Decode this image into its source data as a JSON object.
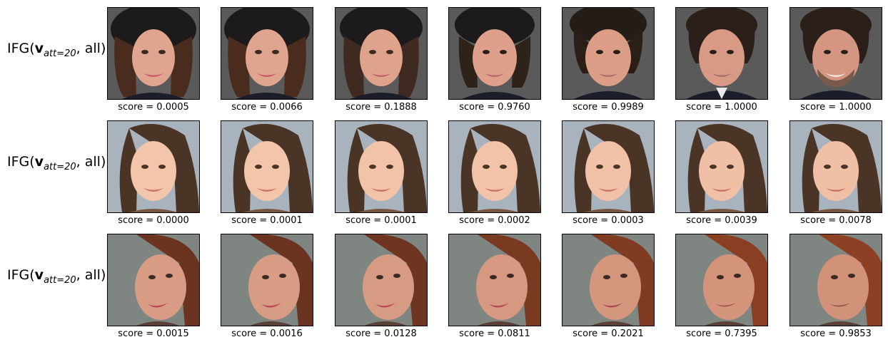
{
  "rows": [
    {
      "label_prefix": "IFG(",
      "label_vector": "v",
      "label_subscript": "att=20",
      "label_suffix": ", all)",
      "scores": [
        "score = 0.0005",
        "score = 0.0066",
        "score = 0.1888",
        "score = 0.9760",
        "score = 0.9989",
        "score = 1.0000",
        "score = 1.0000"
      ],
      "colors": {
        "background": "#5a5a5a",
        "skin": "#e0a58e",
        "hair": "#3a2a22",
        "hat": "#1c1a1a",
        "clothing": "#1a1d2a",
        "lips": "#c95a6a"
      }
    },
    {
      "label_prefix": "IFG(",
      "label_vector": "v",
      "label_subscript": "att=20",
      "label_suffix": ", all)",
      "scores": [
        "score = 0.0000",
        "score = 0.0001",
        "score = 0.0001",
        "score = 0.0002",
        "score = 0.0003",
        "score = 0.0039",
        "score = 0.0078"
      ],
      "colors": {
        "background": "#a9b3bd",
        "skin": "#f3c5ab",
        "hair": "#4a3426",
        "hat": "",
        "clothing": "#7a5540",
        "lips": "#c77468"
      }
    },
    {
      "label_prefix": "IFG(",
      "label_vector": "v",
      "label_subscript": "att=20",
      "label_suffix": ", all)",
      "scores": [
        "score = 0.0015",
        "score = 0.0016",
        "score = 0.0128",
        "score = 0.0811",
        "score = 0.2021",
        "score = 0.7395",
        "score = 0.9853"
      ],
      "colors": {
        "background": "#7f8682",
        "skin": "#d89c84",
        "hair": "#7a3a22",
        "hat": "",
        "clothing": "#5a4036",
        "lips": "#b84a55"
      }
    }
  ]
}
